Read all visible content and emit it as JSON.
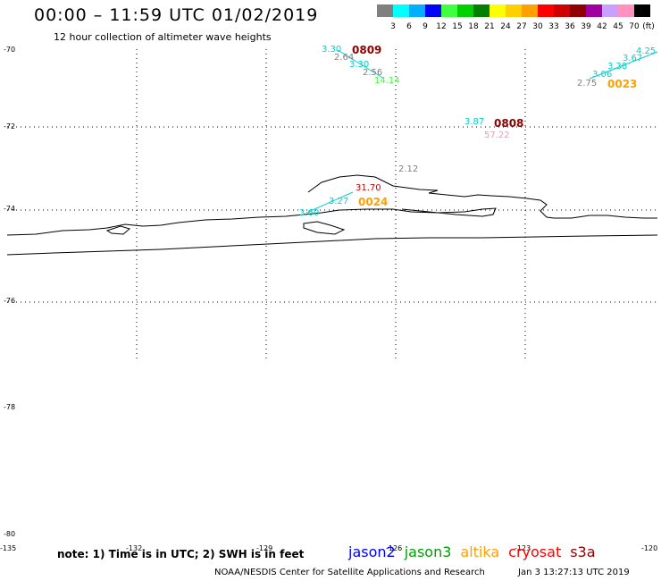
{
  "header": {
    "title": "00:00 – 11:59 UTC 01/02/2019",
    "subtitle": "12 hour collection of altimeter wave heights"
  },
  "color_scale": {
    "labels": [
      "3",
      "6",
      "9",
      "12",
      "15",
      "18",
      "21",
      "24",
      "27",
      "30",
      "33",
      "36",
      "39",
      "42",
      "45",
      "70"
    ],
    "unit": "(ft)",
    "colors": [
      "#808080",
      "#00ffff",
      "#00b0ff",
      "#0000ff",
      "#40ff40",
      "#00d000",
      "#008000",
      "#ffff00",
      "#ffd000",
      "#ffa000",
      "#ff0000",
      "#d00000",
      "#900000",
      "#a000a0",
      "#c8a0ff",
      "#ff90c0",
      "#000000"
    ]
  },
  "map": {
    "lat_labels": [
      "-70",
      "-72",
      "-74",
      "-76",
      "-78",
      "-80"
    ],
    "lon_labels": [
      "-135",
      "-132",
      "-129",
      "-126",
      "-123",
      "-120"
    ],
    "swh_labels": [
      {
        "text": "3.30",
        "color": "#00d0d0"
      },
      {
        "text": "2.64",
        "color": "#808080"
      },
      {
        "text": "3.30",
        "color": "#00d0d0"
      },
      {
        "text": "2.56",
        "color": "#808080"
      },
      {
        "text": "14.14",
        "color": "#40ff40"
      },
      {
        "text": "4.25",
        "color": "#00d0d0"
      },
      {
        "text": "3.67",
        "color": "#00d0d0"
      },
      {
        "text": "3.38",
        "color": "#00d0d0"
      },
      {
        "text": "3.06",
        "color": "#00d0d0"
      },
      {
        "text": "2.75",
        "color": "#808080"
      },
      {
        "text": "3.87",
        "color": "#00d0d0"
      },
      {
        "text": "57.22",
        "color": "#ff90c0"
      },
      {
        "text": "2.12",
        "color": "#808080"
      },
      {
        "text": "31.70",
        "color": "#d00000"
      },
      {
        "text": "3.27",
        "color": "#00d0d0"
      },
      {
        "text": "3.60",
        "color": "#00d0d0"
      }
    ],
    "pass_times": [
      {
        "text": "0809",
        "color": "#900000"
      },
      {
        "text": "0023",
        "color": "#ffa000"
      },
      {
        "text": "0808",
        "color": "#900000"
      },
      {
        "text": "0024",
        "color": "#ffa000"
      }
    ]
  },
  "footer": {
    "note": "note: 1) Time is in UTC; 2) SWH is in feet",
    "satellites": [
      {
        "name": "jason2",
        "color": "#0000ff"
      },
      {
        "name": "jason3",
        "color": "#00a000"
      },
      {
        "name": "altika",
        "color": "#ffa000"
      },
      {
        "name": "cryosat",
        "color": "#ff0000"
      },
      {
        "name": "s3a",
        "color": "#900000"
      }
    ],
    "credit": "NOAA/NESDIS Center for Satellite Applications and Research",
    "timestamp": "Jan  3 13:27:13 UTC 2019"
  }
}
